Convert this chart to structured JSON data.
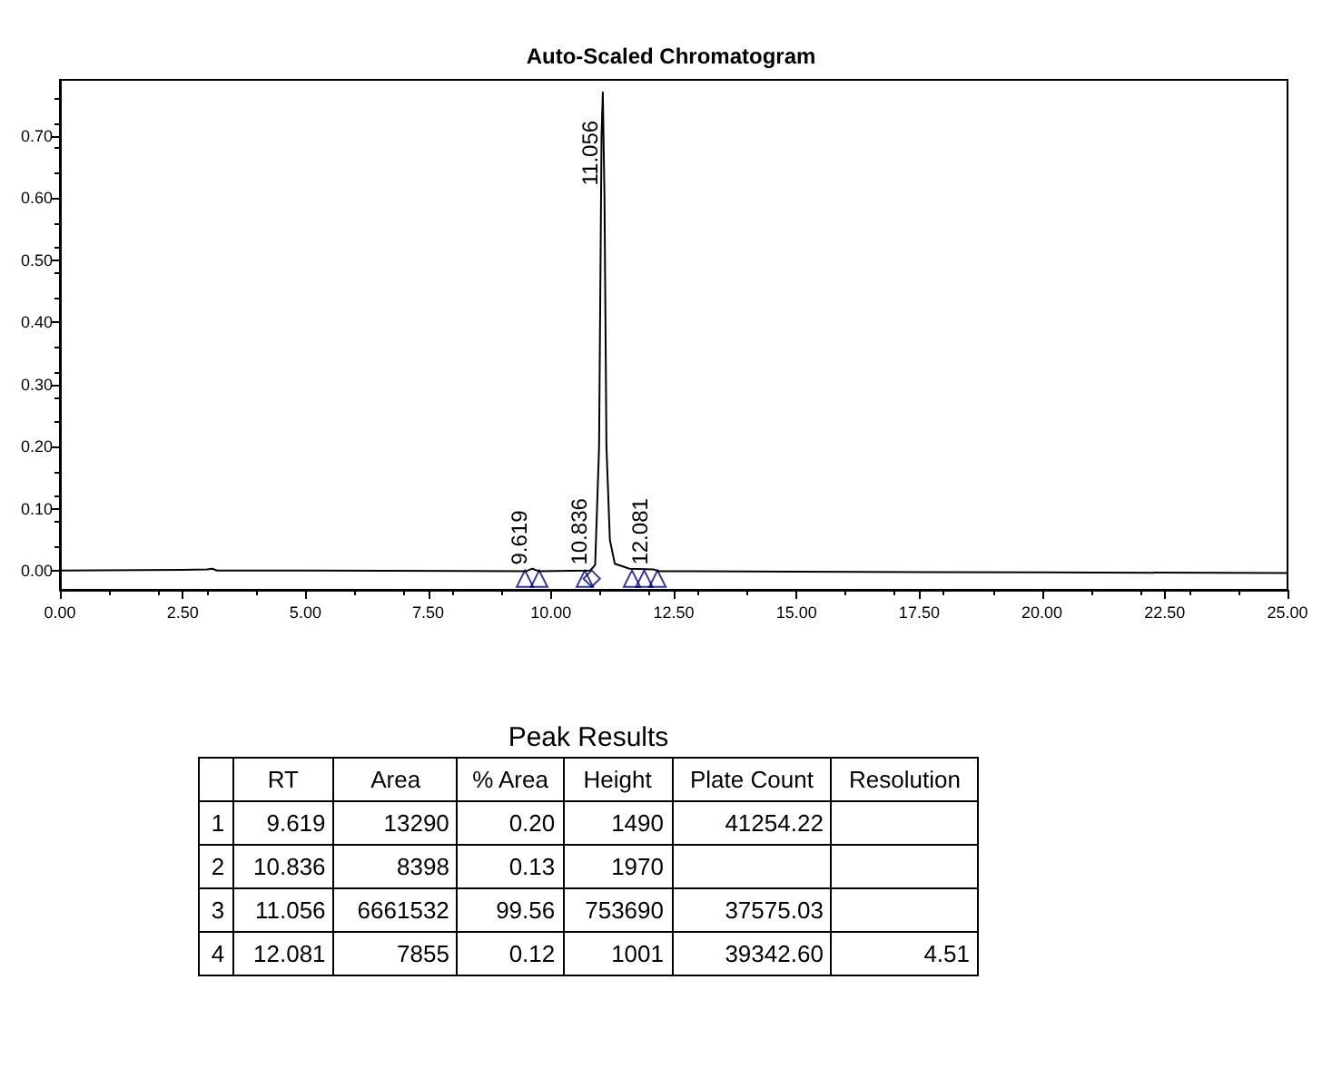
{
  "chart_data": {
    "type": "line",
    "title": "Auto-Scaled Chromatogram",
    "grid": false,
    "xlim": [
      0,
      25
    ],
    "ylim": [
      -0.03,
      0.79
    ],
    "xticks": [
      {
        "value": 0,
        "label": "0.00"
      },
      {
        "value": 2.5,
        "label": "2.50"
      },
      {
        "value": 5,
        "label": "5.00"
      },
      {
        "value": 7.5,
        "label": "7.50"
      },
      {
        "value": 10,
        "label": "10.00"
      },
      {
        "value": 12.5,
        "label": "12.50"
      },
      {
        "value": 15,
        "label": "15.00"
      },
      {
        "value": 17.5,
        "label": "17.50"
      },
      {
        "value": 20,
        "label": "20.00"
      },
      {
        "value": 22.5,
        "label": "22.50"
      },
      {
        "value": 25,
        "label": "25.00"
      }
    ],
    "yticks": [
      {
        "value": 0,
        "label": "0.00"
      },
      {
        "value": 0.1,
        "label": "0.10"
      },
      {
        "value": 0.2,
        "label": "0.20"
      },
      {
        "value": 0.3,
        "label": "0.30"
      },
      {
        "value": 0.4,
        "label": "0.40"
      },
      {
        "value": 0.5,
        "label": "0.50"
      },
      {
        "value": 0.6,
        "label": "0.60"
      },
      {
        "value": 0.7,
        "label": "0.70"
      }
    ],
    "series": [
      {
        "type": "line",
        "color": "#000000",
        "marker": "none",
        "line_style": "solid",
        "x": [
          0,
          2.5,
          3.0,
          3.1,
          3.2,
          5,
          9.5,
          9.62,
          9.75,
          10.8,
          10.9,
          10.98,
          11.03,
          11.056,
          11.09,
          11.13,
          11.2,
          11.3,
          11.6,
          12.08,
          12.2,
          15,
          20,
          25
        ],
        "values": [
          0.001,
          0.002,
          0.003,
          0.004,
          0.001,
          0.001,
          0,
          0.004,
          0,
          0.001,
          0.01,
          0.2,
          0.7,
          0.77,
          0.6,
          0.2,
          0.05,
          0.012,
          0.004,
          0.003,
          0,
          -0.001,
          -0.002,
          -0.003
        ]
      },
      {
        "type": "scatter",
        "color": "#00008b",
        "marker": "triangle",
        "x": [
          9.47,
          9.76,
          10.69,
          11.65,
          11.9,
          12.17
        ],
        "values": [
          -0.012,
          -0.012,
          -0.012,
          -0.012,
          -0.012,
          -0.012
        ]
      },
      {
        "type": "scatter",
        "color": "#00008b",
        "marker": "diamond",
        "x": [
          10.83
        ],
        "values": [
          -0.012
        ]
      }
    ],
    "annotations": [
      {
        "text": "9.619",
        "x": 9.619,
        "y": 0.01
      },
      {
        "text": "10.836",
        "x": 10.836,
        "y": 0.01
      },
      {
        "text": "11.056",
        "x": 11.056,
        "y": 0.62
      },
      {
        "text": "12.081",
        "x": 12.081,
        "y": 0.01
      },
      "Peak Results",
      null,
      "RT",
      "Area",
      "% Area",
      "Height",
      "Plate Count",
      "Resolution",
      "1",
      "9.619",
      "13290",
      "0.20",
      "1490",
      "41254.22",
      null,
      "2",
      "10.836",
      "8398",
      "0.13",
      "1970",
      null,
      null,
      "3",
      "11.056",
      "6661532",
      "99.56",
      "753690",
      "37575.03",
      null,
      "4",
      "12.081",
      "7855",
      "0.12",
      "1001",
      "39342.60",
      "4.51"
    ]
  }
}
